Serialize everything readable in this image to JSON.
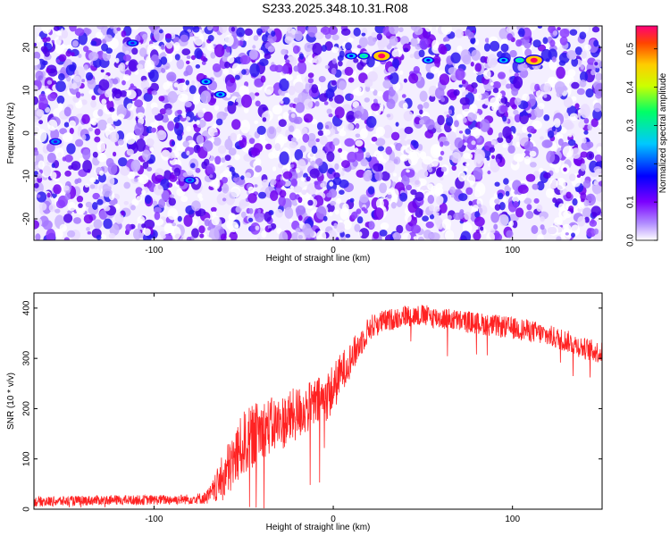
{
  "title": "S233.2025.348.10.31.R08",
  "chart_data": [
    {
      "type": "heatmap",
      "xlabel": "Height of straight line (km)",
      "ylabel": "Frequency (Hz)",
      "colorbar_label": "Normalized spectral amplitude",
      "xlim": [
        -167,
        150
      ],
      "ylim": [
        -25,
        25
      ],
      "xticks": [
        -100,
        0,
        100
      ],
      "yticks": [
        -20,
        -10,
        0,
        10,
        20
      ],
      "colorbar_range": [
        0,
        0.56
      ],
      "colorbar_ticks": [
        0.0,
        0.1,
        0.2,
        0.3,
        0.4,
        0.5
      ],
      "colormap": [
        "#ffffff",
        "#7b00ff",
        "#0000ff",
        "#00c8ff",
        "#00ff66",
        "#ffff00",
        "#ff6600",
        "#ff0066"
      ],
      "hotspots": [
        {
          "x": 27,
          "y": 18,
          "value": 0.56
        },
        {
          "x": 17,
          "y": 18,
          "value": 0.28
        },
        {
          "x": 10,
          "y": 18,
          "value": 0.22
        },
        {
          "x": 112,
          "y": 17,
          "value": 0.56
        },
        {
          "x": 104,
          "y": 17,
          "value": 0.25
        },
        {
          "x": 95,
          "y": 17,
          "value": 0.22
        },
        {
          "x": -63,
          "y": 9,
          "value": 0.22
        },
        {
          "x": -71,
          "y": 12,
          "value": 0.15
        },
        {
          "x": -155,
          "y": -2,
          "value": 0.14
        },
        {
          "x": -112,
          "y": 21,
          "value": 0.12
        },
        {
          "x": -80,
          "y": -11,
          "value": 0.12
        },
        {
          "x": 53,
          "y": 17,
          "value": 0.15
        }
      ]
    },
    {
      "type": "line",
      "xlabel": "Height of straight line (km)",
      "ylabel": "SNR (10 * v/v)",
      "xlim": [
        -167,
        150
      ],
      "ylim": [
        0,
        430
      ],
      "xticks": [
        -100,
        0,
        100
      ],
      "yticks": [
        0,
        100,
        200,
        300,
        400
      ],
      "color": "#ff2222",
      "series": [
        {
          "x": [
            -167,
            -150,
            -130,
            -110,
            -90,
            -80,
            -72,
            -68,
            -60,
            -50,
            -40,
            -30,
            -20,
            -15,
            -10,
            -5,
            0,
            5,
            10,
            15,
            20,
            25,
            30,
            40,
            50,
            60,
            70,
            80,
            90,
            100,
            110,
            120,
            130,
            140,
            150
          ],
          "y": [
            15,
            16,
            18,
            18,
            19,
            20,
            22,
            30,
            70,
            130,
            160,
            170,
            190,
            200,
            210,
            220,
            240,
            275,
            300,
            330,
            360,
            370,
            375,
            385,
            385,
            380,
            375,
            370,
            365,
            360,
            355,
            345,
            335,
            320,
            310
          ],
          "noise": [
            10,
            10,
            10,
            10,
            10,
            10,
            12,
            20,
            55,
            65,
            60,
            55,
            55,
            50,
            50,
            50,
            50,
            40,
            35,
            30,
            25,
            25,
            22,
            22,
            22,
            22,
            22,
            22,
            22,
            22,
            22,
            22,
            22,
            22,
            22
          ]
        }
      ]
    }
  ]
}
